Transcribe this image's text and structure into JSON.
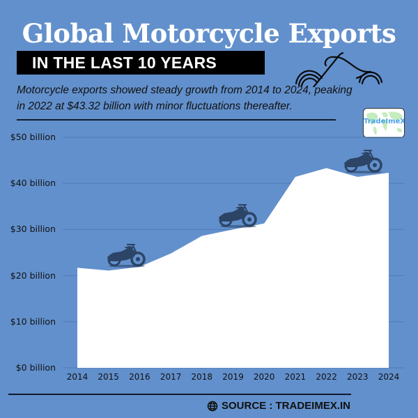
{
  "header": {
    "title": "Global Motorcycle Exports",
    "subtitle": "IN THE LAST 10 YEARS",
    "description_line1": "Motorcycle exports showed steady growth from 2014 to 2024, peaking",
    "description_line2": "in 2022 at $43.32 billion with minor fluctuations thereafter.",
    "motorcycle_outline_icon": "motorcycle-outline-icon"
  },
  "logo": {
    "text": "TradeImeX",
    "icon": "world-map-icon"
  },
  "footer": {
    "source": "SOURCE : TRADEIMEX.IN",
    "icon": "globe-icon"
  },
  "colors": {
    "background": "#6290cc",
    "area_fill": "#ffffff",
    "text_dark": "#111111",
    "gridline": "#4f7bb5",
    "motorcycle": "#2c4466",
    "logo_text": "#4aa3e8"
  },
  "chart_data": {
    "type": "area",
    "title": "Global Motorcycle Exports",
    "subtitle": "IN THE LAST 10 YEARS",
    "xlabel": "",
    "ylabel": "",
    "categories": [
      "2014",
      "2015",
      "2016",
      "2017",
      "2018",
      "2019",
      "2020",
      "2021",
      "2022",
      "2023",
      "2024"
    ],
    "values": [
      21.7,
      21.1,
      21.9,
      24.8,
      28.6,
      30.0,
      31.3,
      41.4,
      43.32,
      41.4,
      42.3
    ],
    "unit": "billion USD",
    "ylim": [
      0,
      50
    ],
    "yticks": [
      "$0 billion",
      "$10 billion",
      "$20 billion",
      "$30 billion",
      "$40 billion",
      "$50 billion"
    ],
    "ytick_values": [
      0,
      10,
      20,
      30,
      40,
      50
    ],
    "grid": true,
    "legend": null,
    "annotations": [
      {
        "type": "image",
        "label": "motorcycle-icon",
        "near": "2015"
      },
      {
        "type": "image",
        "label": "motorcycle-icon",
        "near": "2019"
      },
      {
        "type": "image",
        "label": "motorcycle-icon",
        "near": "2023"
      }
    ]
  }
}
